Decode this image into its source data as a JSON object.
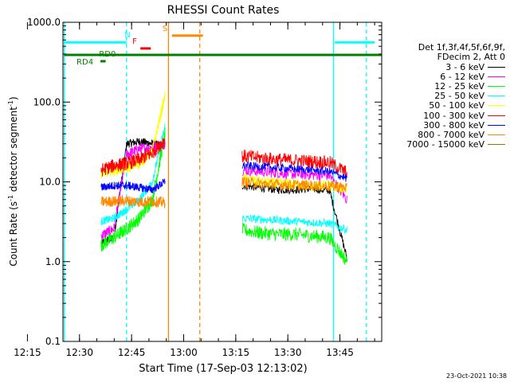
{
  "chart_data": {
    "type": "line",
    "title": "RHESSI Count Rates",
    "xlabel": "Start Time (17-Sep-03 12:13:02)",
    "ylabel_main": "Count Rate (s",
    "ylabel_sup1": "-1",
    "ylabel_mid": " detector segment",
    "ylabel_sup2": "-1",
    "ylabel_end": ")",
    "y_scale": "log",
    "ylim": [
      0.1,
      1000
    ],
    "xlim_minutes": [
      12.2,
      104
    ],
    "x_tick_labels": [
      "12:15",
      "12:30",
      "12:45",
      "13:00",
      "13:15",
      "13:30",
      "13:45"
    ],
    "y_tick_labels": [
      "0.1",
      "1.0",
      "10.0",
      "100.0",
      "1000.0"
    ],
    "legend_header": [
      "Det 1f,3f,4f,5f,6f,9f,",
      "FDecim 2, Att 0"
    ],
    "series": [
      {
        "name": "3 - 6 keV",
        "color": "#000000",
        "pre": [
          1.7,
          2.0,
          30,
          32,
          30,
          28
        ],
        "post": [
          9,
          8.5,
          8,
          8,
          8.2,
          7.8,
          1.1
        ]
      },
      {
        "name": "6 - 12 keV",
        "color": "#ff00ff",
        "pre": [
          2.1,
          2.6,
          22,
          26,
          27,
          30
        ],
        "post": [
          14,
          13.5,
          13,
          12.5,
          12.3,
          12,
          6
        ]
      },
      {
        "name": "12 - 25 keV",
        "color": "#00ff00",
        "pre": [
          1.6,
          2.0,
          2.6,
          3.5,
          6,
          40
        ],
        "post": [
          2.5,
          2.3,
          2.2,
          2.2,
          2.1,
          2.0,
          1.0
        ]
      },
      {
        "name": "25 - 50 keV",
        "color": "#00ffff",
        "pre": [
          3.2,
          3.5,
          4.5,
          6,
          10,
          50
        ],
        "post": [
          3.5,
          3.4,
          3.3,
          3.2,
          3.1,
          3.0,
          2.5
        ]
      },
      {
        "name": "50 - 100 keV",
        "color": "#ffff00",
        "pre": [
          13,
          14,
          15,
          17,
          24,
          120
        ],
        "post": [
          11,
          10,
          9.5,
          9.3,
          9.0,
          8.8,
          8
        ]
      },
      {
        "name": "100 - 300 keV",
        "color": "#ff0000",
        "pre": [
          14,
          16,
          17,
          19,
          23,
          34
        ],
        "post": [
          21,
          20,
          19,
          18.5,
          18,
          17.5,
          13
        ]
      },
      {
        "name": "300 - 800 keV",
        "color": "#0000ff",
        "pre": [
          8.5,
          9,
          9,
          8.5,
          8,
          10
        ],
        "post": [
          16,
          15.5,
          15,
          14.5,
          14,
          13.5,
          11
        ]
      },
      {
        "name": "800 - 7000 keV",
        "color": "#ff8800",
        "pre": [
          5.6,
          5.7,
          5.8,
          5.6,
          5.7,
          5.5
        ],
        "post": [
          10,
          9.5,
          9.3,
          9.1,
          9.0,
          8.9,
          8.5
        ]
      },
      {
        "name": "7000 - 15000 keV",
        "color": "#808000",
        "pre": [],
        "post": []
      }
    ],
    "flags": [
      {
        "label": "N",
        "color": "#00ffff",
        "segments": [
          [
            12.5,
            30.5
          ],
          [
            90.5,
            102
          ]
        ],
        "level": 560
      },
      {
        "label": "S",
        "color": "#ff8800",
        "segments": [
          [
            43.6,
            52.5
          ]
        ],
        "level": 680
      },
      {
        "label": "F",
        "color": "#ff0000",
        "segments": [
          [
            34.5,
            37.5
          ]
        ],
        "level": 470
      },
      {
        "label": "RD0",
        "color": "#008000",
        "segments": [
          [
            12.5,
            104
          ]
        ],
        "level": 390
      },
      {
        "label": "RD4",
        "color": "#008000",
        "segments": [
          [
            23,
            24.5
          ]
        ],
        "level": 325
      }
    ],
    "vlines": [
      {
        "x": 12.6,
        "color": "#00ffff",
        "style": "solid"
      },
      {
        "x": 30.5,
        "color": "#00ffff",
        "style": "dashed"
      },
      {
        "x": 42.6,
        "color": "#ff8800",
        "style": "solid"
      },
      {
        "x": 51.6,
        "color": "#ff8800",
        "style": "dashed"
      },
      {
        "x": 90.1,
        "color": "#00ffff",
        "style": "solid"
      },
      {
        "x": 99.6,
        "color": "#00ffff",
        "style": "dashed"
      }
    ]
  },
  "footer_date": "23-Oct-2021 10:38"
}
